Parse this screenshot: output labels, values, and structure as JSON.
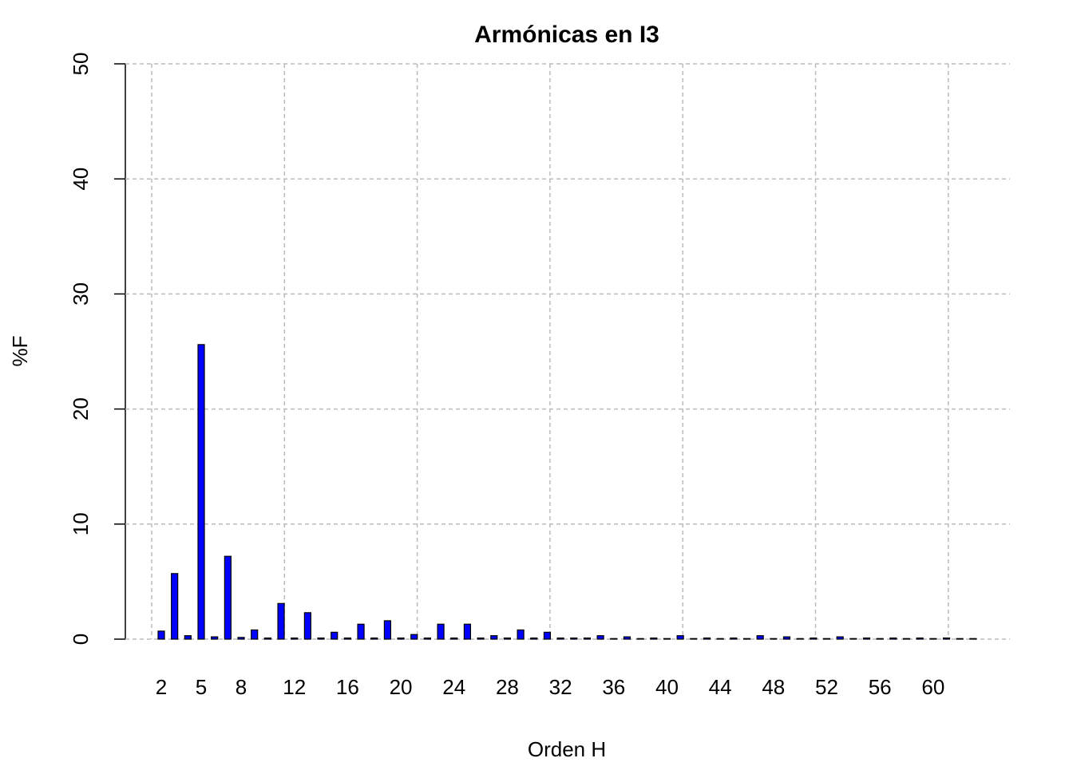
{
  "chart_data": {
    "type": "bar",
    "title": "Armónicas en I3",
    "xlabel": "Orden H",
    "ylabel": "%F",
    "categories": [
      "2",
      null,
      null,
      "5",
      null,
      null,
      "8",
      null,
      null,
      null,
      "12",
      null,
      null,
      null,
      "16",
      null,
      null,
      null,
      "20",
      null,
      null,
      null,
      "24",
      null,
      null,
      null,
      "28",
      null,
      null,
      null,
      "32",
      null,
      null,
      null,
      "36",
      null,
      null,
      null,
      "40",
      null,
      null,
      null,
      "44",
      null,
      null,
      null,
      "48",
      null,
      null,
      null,
      "52",
      null,
      null,
      null,
      "56",
      null,
      null,
      null,
      "60",
      null,
      null,
      null
    ],
    "values": [
      0.7,
      5.7,
      0.3,
      25.6,
      0.2,
      7.2,
      0.15,
      0.8,
      0.1,
      3.1,
      0.1,
      2.3,
      0.1,
      0.6,
      0.1,
      1.3,
      0.1,
      1.6,
      0.1,
      0.4,
      0.1,
      1.3,
      0.1,
      1.3,
      0.1,
      0.3,
      0.1,
      0.8,
      0.1,
      0.6,
      0.1,
      0.1,
      0.1,
      0.3,
      0.05,
      0.2,
      0.05,
      0.1,
      0.05,
      0.3,
      0.05,
      0.1,
      0.05,
      0.1,
      0.05,
      0.3,
      0.05,
      0.2,
      0.05,
      0.1,
      0.05,
      0.2,
      0.05,
      0.1,
      0.05,
      0.1,
      0.05,
      0.1,
      0.05,
      0.1,
      0.05,
      0.05
    ],
    "color": "#0000ff",
    "ylim": [
      0,
      50
    ],
    "yticks": [
      0,
      10,
      20,
      30,
      40,
      50
    ],
    "grid": true
  }
}
